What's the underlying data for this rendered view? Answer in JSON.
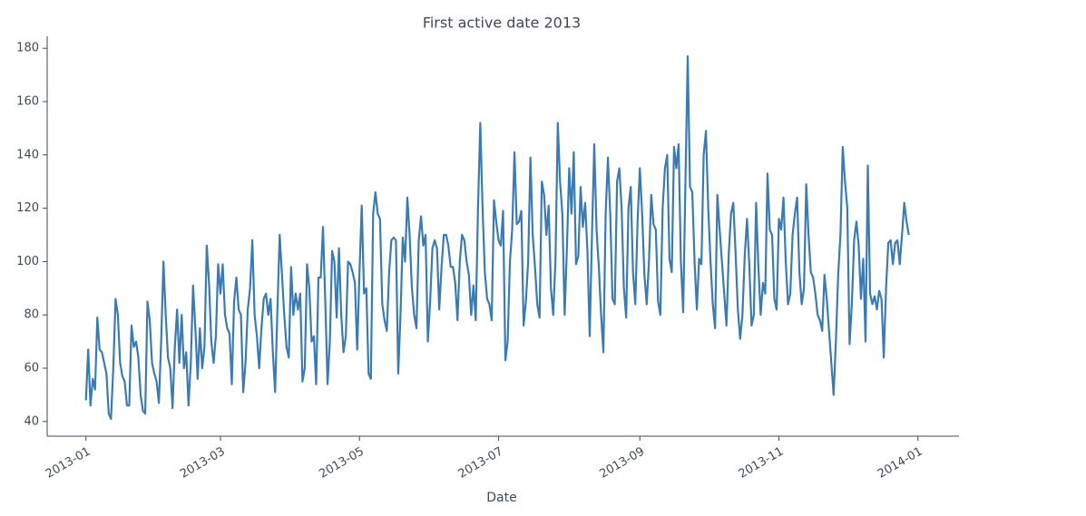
{
  "chart_data": {
    "type": "line",
    "title": "First active date 2013",
    "x_label": "Date",
    "color": "#3a7bb3",
    "values": [
      48,
      67,
      46,
      56,
      52,
      79,
      67,
      66,
      62,
      58,
      43,
      41,
      60,
      86,
      80,
      62,
      57,
      55,
      46,
      46,
      76,
      68,
      70,
      64,
      50,
      44,
      43,
      85,
      78,
      62,
      58,
      55,
      47,
      70,
      100,
      80,
      64,
      60,
      45,
      68,
      82,
      62,
      80,
      60,
      66,
      46,
      62,
      91,
      75,
      56,
      75,
      60,
      68,
      106,
      92,
      70,
      62,
      72,
      99,
      88,
      99,
      80,
      75,
      73,
      54,
      85,
      94,
      82,
      80,
      51,
      62,
      82,
      90,
      108,
      80,
      72,
      60,
      75,
      86,
      88,
      80,
      86,
      66,
      51,
      82,
      110,
      95,
      80,
      68,
      64,
      98,
      80,
      88,
      82,
      88,
      55,
      60,
      99,
      90,
      70,
      72,
      54,
      94,
      94,
      113,
      85,
      54,
      70,
      104,
      100,
      79,
      105,
      80,
      66,
      72,
      100,
      99,
      96,
      92,
      67,
      96,
      121,
      88,
      90,
      58,
      56,
      118,
      126,
      118,
      116,
      84,
      78,
      74,
      96,
      108,
      109,
      108,
      58,
      80,
      109,
      100,
      124,
      110,
      90,
      80,
      75,
      108,
      117,
      106,
      110,
      70,
      85,
      105,
      108,
      105,
      82,
      98,
      110,
      110,
      106,
      98,
      98,
      92,
      78,
      100,
      110,
      108,
      100,
      95,
      80,
      91,
      78,
      120,
      152,
      120,
      96,
      86,
      84,
      78,
      123,
      115,
      108,
      106,
      119,
      63,
      70,
      100,
      112,
      141,
      114,
      115,
      119,
      76,
      85,
      100,
      139,
      110,
      98,
      84,
      79,
      130,
      125,
      110,
      121,
      90,
      80,
      101,
      152,
      130,
      118,
      80,
      105,
      135,
      118,
      141,
      99,
      102,
      128,
      113,
      122,
      104,
      72,
      110,
      144,
      112,
      98,
      80,
      66,
      118,
      139,
      118,
      86,
      84,
      130,
      135,
      120,
      90,
      79,
      120,
      128,
      96,
      84,
      115,
      135,
      118,
      95,
      84,
      100,
      125,
      114,
      112,
      85,
      80,
      120,
      135,
      140,
      101,
      96,
      143,
      135,
      144,
      100,
      81,
      130,
      177,
      128,
      126,
      100,
      82,
      101,
      99,
      140,
      149,
      120,
      100,
      84,
      75,
      125,
      112,
      100,
      88,
      76,
      103,
      118,
      122,
      103,
      82,
      71,
      80,
      102,
      116,
      99,
      76,
      80,
      122,
      98,
      80,
      92,
      88,
      133,
      112,
      110,
      86,
      82,
      116,
      112,
      124,
      100,
      84,
      88,
      110,
      118,
      124,
      96,
      84,
      90,
      129,
      110,
      96,
      94,
      88,
      80,
      78,
      74,
      95,
      86,
      74,
      62,
      50,
      70,
      95,
      110,
      143,
      130,
      120,
      69,
      84,
      108,
      115,
      106,
      86,
      101,
      70,
      136,
      88,
      84,
      87,
      82,
      89,
      86,
      64,
      90,
      107,
      108,
      99,
      107,
      108,
      99,
      110,
      122,
      115,
      110
    ],
    "xlim": [
      -17,
      383
    ],
    "xticks": [
      {
        "value": 0,
        "label": "2013-01"
      },
      {
        "value": 59,
        "label": "2013-03"
      },
      {
        "value": 120,
        "label": "2013-05"
      },
      {
        "value": 181,
        "label": "2013-07"
      },
      {
        "value": 243,
        "label": "2013-09"
      },
      {
        "value": 304,
        "label": "2013-11"
      },
      {
        "value": 365,
        "label": "2014-01"
      }
    ],
    "ylim": [
      34.5,
      184.5
    ],
    "yticks": [
      40,
      60,
      80,
      100,
      120,
      140,
      160,
      180
    ],
    "grid": false
  }
}
